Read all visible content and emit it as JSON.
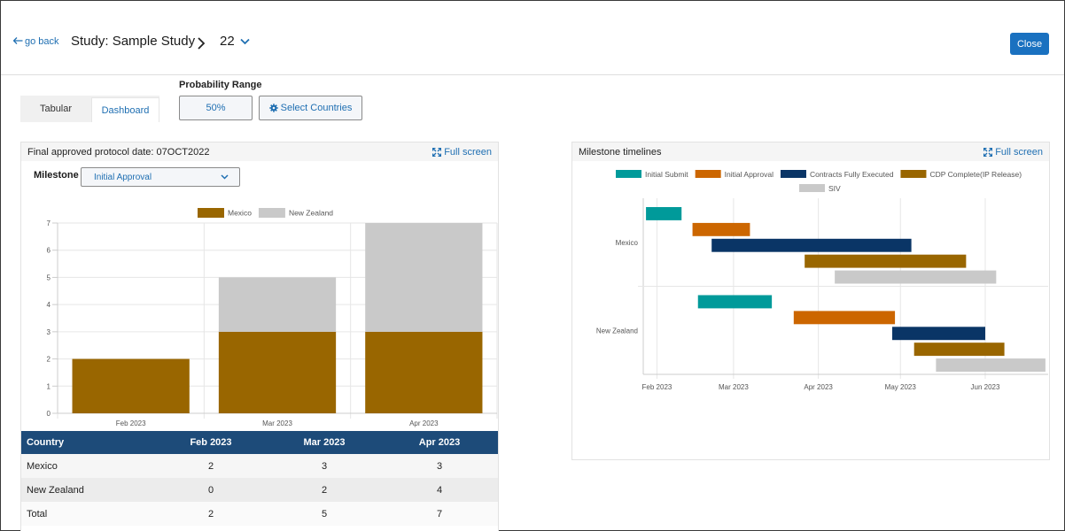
{
  "header": {
    "go_back": "go back",
    "study_title": "Study: Sample Study",
    "breadcrumb_value": "22",
    "close_label": "Close"
  },
  "tabs": [
    {
      "label": "Tabular"
    },
    {
      "label": "Dashboard"
    }
  ],
  "probability": {
    "label": "Probability Range",
    "value": "50%"
  },
  "select_countries_label": "Select Countries",
  "left_panel": {
    "title": "Final approved protocol date: 07OCT2022",
    "full_screen": "Full screen",
    "milestone_label": "Milestone",
    "milestone_value": "Initial Approval"
  },
  "right_panel": {
    "title": "Milestone timelines",
    "full_screen": "Full screen"
  },
  "chart_data": [
    {
      "type": "bar",
      "stacked": true,
      "categories": [
        "Feb 2023",
        "Mar 2023",
        "Apr 2023"
      ],
      "series": [
        {
          "name": "Mexico",
          "values": [
            2,
            3,
            3
          ],
          "color": "#996600"
        },
        {
          "name": "New Zealand",
          "values": [
            0,
            2,
            4
          ],
          "color": "#c9c9c9"
        }
      ],
      "ylim": [
        0,
        7
      ],
      "yticks": [
        0,
        1,
        2,
        3,
        4,
        5,
        6,
        7
      ],
      "grid": true,
      "legend": "top"
    },
    {
      "type": "gantt",
      "x_ticks": [
        "Feb 2023",
        "Mar 2023",
        "Apr 2023",
        "May 2023",
        "Jun 2023"
      ],
      "categories": [
        "Mexico",
        "New Zealand"
      ],
      "series": [
        {
          "name": "Initial Submit",
          "color": "#009a9a"
        },
        {
          "name": "Initial Approval",
          "color": "#cc6600"
        },
        {
          "name": "Contracts Fully Executed",
          "color": "#0a3566"
        },
        {
          "name": "CDP Complete(IP Release)",
          "color": "#996600"
        },
        {
          "name": "SIV",
          "color": "#c9c9c9"
        }
      ],
      "tasks": [
        {
          "category": "Mexico",
          "series": "Initial Submit",
          "start": "2023-01-28",
          "end": "2023-02-10"
        },
        {
          "category": "Mexico",
          "series": "Initial Approval",
          "start": "2023-02-14",
          "end": "2023-03-07"
        },
        {
          "category": "Mexico",
          "series": "Contracts Fully Executed",
          "start": "2023-02-21",
          "end": "2023-05-05"
        },
        {
          "category": "Mexico",
          "series": "CDP Complete(IP Release)",
          "start": "2023-03-27",
          "end": "2023-05-25"
        },
        {
          "category": "Mexico",
          "series": "SIV",
          "start": "2023-04-07",
          "end": "2023-06-05"
        },
        {
          "category": "New Zealand",
          "series": "Initial Submit",
          "start": "2023-02-16",
          "end": "2023-03-15"
        },
        {
          "category": "New Zealand",
          "series": "Initial Approval",
          "start": "2023-03-23",
          "end": "2023-04-29"
        },
        {
          "category": "New Zealand",
          "series": "Contracts Fully Executed",
          "start": "2023-04-28",
          "end": "2023-06-01"
        },
        {
          "category": "New Zealand",
          "series": "CDP Complete(IP Release)",
          "start": "2023-05-06",
          "end": "2023-06-08"
        },
        {
          "category": "New Zealand",
          "series": "SIV",
          "start": "2023-05-14",
          "end": "2023-06-23"
        }
      ],
      "legend": "top"
    }
  ],
  "table": {
    "headers": [
      "Country",
      "Feb 2023",
      "Mar 2023",
      "Apr 2023"
    ],
    "rows": [
      [
        "Mexico",
        "2",
        "3",
        "3"
      ],
      [
        "New Zealand",
        "0",
        "2",
        "4"
      ],
      [
        "Total",
        "2",
        "5",
        "7"
      ]
    ]
  }
}
